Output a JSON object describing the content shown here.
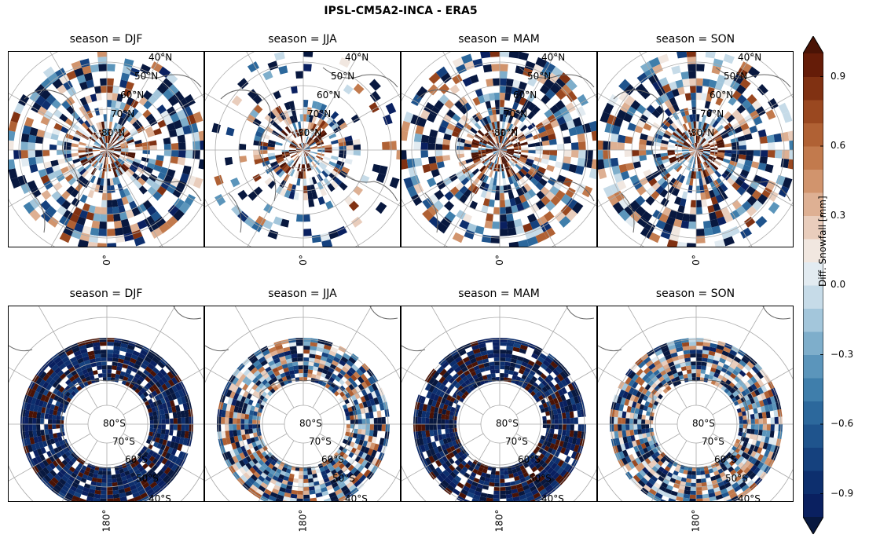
{
  "figure": {
    "title": "IPSL-CM5A2-INCA - ERA5"
  },
  "panels": [
    {
      "title": "season = DJF",
      "hemisphere": "north",
      "season": "DJF",
      "lon_label": "0°",
      "lat_labels": [
        "40°N",
        "50°N",
        "60°N",
        "70°N",
        "80°N"
      ]
    },
    {
      "title": "season = JJA",
      "hemisphere": "north",
      "season": "JJA",
      "lon_label": "0°",
      "lat_labels": [
        "40°N",
        "50°N",
        "60°N",
        "70°N",
        "80°N"
      ]
    },
    {
      "title": "season = MAM",
      "hemisphere": "north",
      "season": "MAM",
      "lon_label": "0°",
      "lat_labels": [
        "40°N",
        "50°N",
        "60°N",
        "70°N",
        "80°N"
      ]
    },
    {
      "title": "season = SON",
      "hemisphere": "north",
      "season": "SON",
      "lon_label": "0°",
      "lat_labels": [
        "40°N",
        "50°N",
        "60°N",
        "70°N",
        "80°N"
      ]
    },
    {
      "title": "season = DJF",
      "hemisphere": "south",
      "season": "DJF",
      "lon_label": "180°",
      "lat_labels": [
        "80°S",
        "70°S",
        "60°S",
        "50°S",
        "40°S"
      ]
    },
    {
      "title": "season = JJA",
      "hemisphere": "south",
      "season": "JJA",
      "lon_label": "180°",
      "lat_labels": [
        "80°S",
        "70°S",
        "60°S",
        "50°S",
        "40°S"
      ]
    },
    {
      "title": "season = MAM",
      "hemisphere": "south",
      "season": "MAM",
      "lon_label": "180°",
      "lat_labels": [
        "80°S",
        "70°S",
        "60°S",
        "50°S",
        "40°S"
      ]
    },
    {
      "title": "season = SON",
      "hemisphere": "south",
      "season": "SON",
      "lon_label": "180°",
      "lat_labels": [
        "80°S",
        "70°S",
        "60°S",
        "50°S",
        "40°S"
      ]
    }
  ],
  "colorbar": {
    "label": "Diff. Snowfall [mm]",
    "min": -1.0,
    "max": 1.0,
    "ticks": [
      {
        "value": 0.9,
        "label": "0.9"
      },
      {
        "value": 0.6,
        "label": "0.6"
      },
      {
        "value": 0.3,
        "label": "0.3"
      },
      {
        "value": 0.0,
        "label": "0.0"
      },
      {
        "value": -0.3,
        "label": "−0.3"
      },
      {
        "value": -0.6,
        "label": "−0.6"
      },
      {
        "value": -0.9,
        "label": "−0.9"
      }
    ],
    "extend": "both",
    "colors": [
      "#0a2060",
      "#0d2f6e",
      "#15417e",
      "#1f548d",
      "#2c689c",
      "#3f7eab",
      "#5b95bb",
      "#7eaecb",
      "#a3c6db",
      "#c6dbe8",
      "#e2ebf1",
      "#f1e7e0",
      "#e9cdbc",
      "#deb093",
      "#d1946d",
      "#c27a4d",
      "#b06134",
      "#9a4820",
      "#803112",
      "#651c08"
    ],
    "extend_low_color": "#08183f",
    "extend_high_color": "#4a1305"
  },
  "map_style": {
    "grid_color": "#aaaaaa",
    "coast_color": "#666666",
    "background": "#ffffff"
  }
}
